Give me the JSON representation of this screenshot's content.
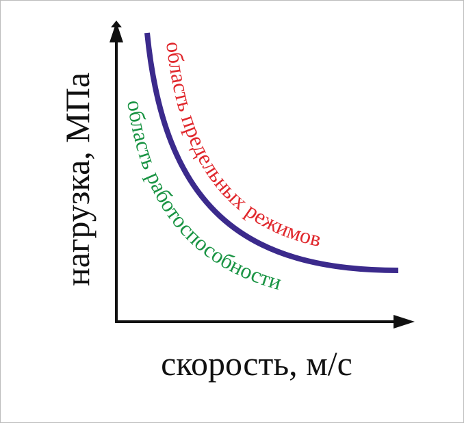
{
  "axes": {
    "y_label": "нагрузка, МПа",
    "x_label": "скорость, м/с"
  },
  "regions": {
    "upper": "область предельных режимов",
    "lower": "область работоспособности"
  }
}
